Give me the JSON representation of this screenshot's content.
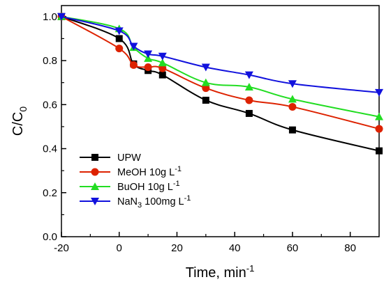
{
  "chart_data": {
    "type": "line",
    "xlabel": {
      "base": "Time, min",
      "sup": "-1"
    },
    "ylabel": {
      "base": "C/C",
      "sub": "0"
    },
    "xlim": [
      -20,
      90
    ],
    "ylim": [
      0.0,
      1.05
    ],
    "x_ticks": [
      "-20",
      "0",
      "20",
      "40",
      "60",
      "80"
    ],
    "y_ticks": [
      "0.0",
      "0.2",
      "0.4",
      "0.6",
      "0.8",
      "1.0"
    ],
    "x": [
      -20,
      0,
      5,
      10,
      15,
      30,
      45,
      60,
      90
    ],
    "grid": false,
    "legend_position": "bottom-left",
    "series": [
      {
        "name": "UPW",
        "legend": {
          "base": "UPW",
          "sub": "",
          "tail": ""
        },
        "color": "#000000",
        "marker": "square",
        "values": [
          1.0,
          0.9,
          0.785,
          0.755,
          0.735,
          0.62,
          0.56,
          0.485,
          0.39
        ]
      },
      {
        "name": "MeOH 10g L-1",
        "legend": {
          "base": "MeOH 10g L",
          "sub": "",
          "sup": "-1"
        },
        "color": "#dd2200",
        "marker": "circle",
        "values": [
          1.0,
          0.855,
          0.78,
          0.77,
          0.765,
          0.675,
          0.62,
          0.59,
          0.49
        ]
      },
      {
        "name": "BuOH 10g L-1",
        "legend": {
          "base": "BuOH 10g L",
          "sub": "",
          "sup": "-1"
        },
        "color": "#22dd22",
        "marker": "triangle-up",
        "values": [
          1.0,
          0.945,
          0.86,
          0.81,
          0.79,
          0.7,
          0.68,
          0.625,
          0.545
        ]
      },
      {
        "name": "NaN3 100mg L-1",
        "legend": {
          "base": "NaN",
          "sub": "3",
          "tail": " 100mg L",
          "sup": "-1"
        },
        "color": "#1111dd",
        "marker": "triangle-down",
        "values": [
          1.0,
          0.935,
          0.865,
          0.83,
          0.82,
          0.77,
          0.735,
          0.695,
          0.655
        ]
      }
    ]
  }
}
